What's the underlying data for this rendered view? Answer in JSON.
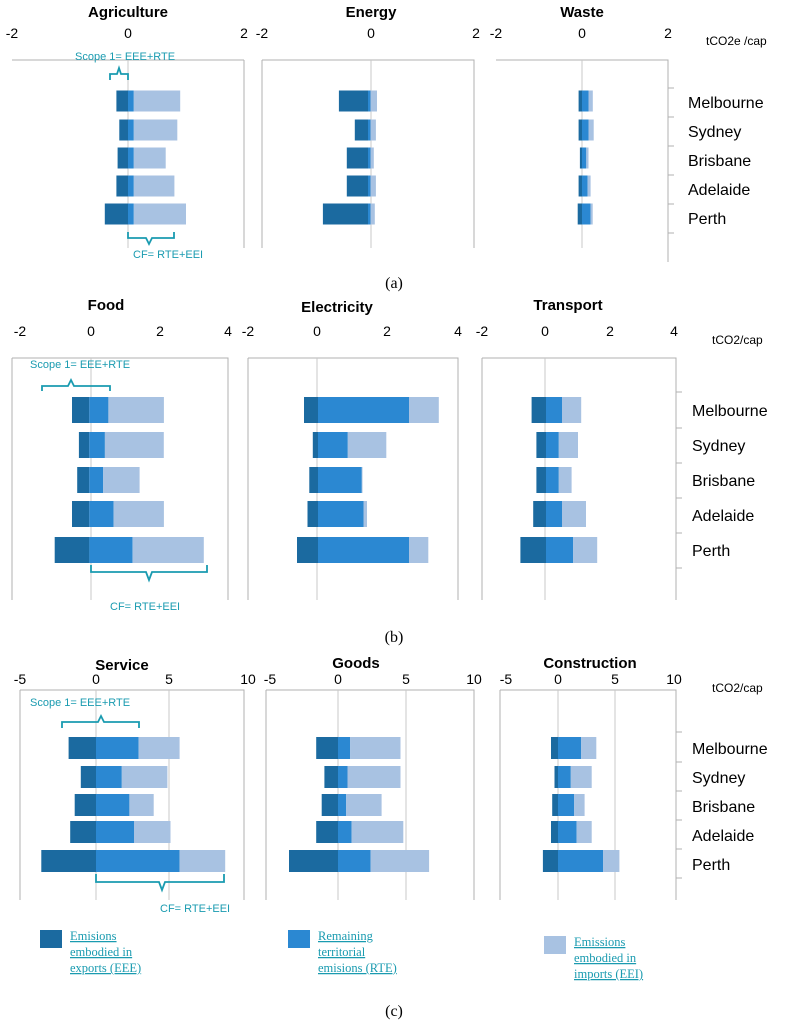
{
  "colors": {
    "eee": "#1b6aa0",
    "rte": "#2b88d2",
    "eei": "#a8c2e2",
    "annotation": "#1a9bb0"
  },
  "cities": [
    "Melbourne",
    "Sydney",
    "Brisbane",
    "Adelaide",
    "Perth"
  ],
  "legend": [
    {
      "key": "eee",
      "line1": "Emisions",
      "line2": "embodied in",
      "line3": "exports (EEE)"
    },
    {
      "key": "rte",
      "line1": "Remaining",
      "line2": "territorial",
      "line3": "emisions (RTE)"
    },
    {
      "key": "eei",
      "line1": "Emissions",
      "line2": "embodied in",
      "line3": "imports (EEI)"
    }
  ],
  "chart_data": [
    {
      "label": "(a)",
      "unit": "tCO2e /cap",
      "ticks": [
        "-2",
        "0",
        "2"
      ],
      "scope_label": "Scope 1= EEE+RTE",
      "cf_label": "CF= RTE+EEI",
      "panels": [
        {
          "title": "Agriculture",
          "type": "bar",
          "xlim": [
            -2,
            2
          ],
          "series": [
            {
              "name": "EEE",
              "values": [
                -0.2,
                -0.15,
                -0.18,
                -0.2,
                -0.4
              ]
            },
            {
              "name": "RTE",
              "values": [
                0.1,
                0.1,
                0.1,
                0.1,
                0.1
              ]
            },
            {
              "name": "EEI",
              "values": [
                0.8,
                0.75,
                0.55,
                0.7,
                0.9
              ]
            }
          ]
        },
        {
          "title": "Energy",
          "type": "bar",
          "xlim": [
            -2,
            2
          ],
          "series": [
            {
              "name": "EEE",
              "values": [
                -0.55,
                -0.25,
                -0.4,
                -0.4,
                -0.85
              ]
            },
            {
              "name": "RTE",
              "values": [
                0.05,
                0.05,
                0.05,
                0.05,
                0.05
              ]
            },
            {
              "name": "EEI",
              "values": [
                0.12,
                0.1,
                0.06,
                0.1,
                0.08
              ]
            }
          ]
        },
        {
          "title": "Waste",
          "type": "bar",
          "xlim": [
            -2,
            2
          ],
          "series": [
            {
              "name": "EEE",
              "values": [
                -0.08,
                -0.08,
                -0.05,
                -0.08,
                -0.1
              ]
            },
            {
              "name": "RTE",
              "values": [
                0.15,
                0.15,
                0.1,
                0.13,
                0.2
              ]
            },
            {
              "name": "EEI",
              "values": [
                0.1,
                0.12,
                0.05,
                0.07,
                0.05
              ]
            }
          ]
        }
      ]
    },
    {
      "label": "(b)",
      "unit": "tCO2/cap",
      "ticks": [
        "-2",
        "0",
        "2",
        "4"
      ],
      "scope_label": "Scope 1= EEE+RTE",
      "cf_label": "CF= RTE+EEI",
      "panels": [
        {
          "title": "Food",
          "type": "bar",
          "xlim": [
            -2,
            4
          ],
          "series": [
            {
              "name": "EEE",
              "values": [
                -0.5,
                -0.3,
                -0.35,
                -0.5,
                -1.0
              ]
            },
            {
              "name": "RTE",
              "values": [
                0.55,
                0.45,
                0.4,
                0.7,
                1.25
              ]
            },
            {
              "name": "EEI",
              "values": [
                1.6,
                1.7,
                1.05,
                1.45,
                2.05
              ]
            }
          ]
        },
        {
          "title": "Electricity",
          "type": "bar",
          "xlim": [
            -2,
            4
          ],
          "series": [
            {
              "name": "EEE",
              "values": [
                -0.4,
                -0.15,
                -0.25,
                -0.3,
                -0.6
              ]
            },
            {
              "name": "RTE",
              "values": [
                2.6,
                0.85,
                1.25,
                1.3,
                2.6
              ]
            },
            {
              "name": "EEI",
              "values": [
                0.85,
                1.1,
                0.02,
                0.1,
                0.55
              ]
            }
          ]
        },
        {
          "title": "Transport",
          "type": "bar",
          "xlim": [
            -2,
            4
          ],
          "series": [
            {
              "name": "EEE",
              "values": [
                -0.45,
                -0.3,
                -0.3,
                -0.4,
                -0.8
              ]
            },
            {
              "name": "RTE",
              "values": [
                0.5,
                0.4,
                0.4,
                0.5,
                0.85
              ]
            },
            {
              "name": "EEI",
              "values": [
                0.6,
                0.6,
                0.4,
                0.75,
                0.75
              ]
            }
          ]
        }
      ]
    },
    {
      "label": "(c)",
      "unit": "tCO2/cap",
      "ticks": [
        "-5",
        "0",
        "5",
        "10"
      ],
      "scope_label": "Scope 1= EEE+RTE",
      "cf_label": "CF= RTE+EEI",
      "panels": [
        {
          "title": "Service",
          "type": "bar",
          "xlim": [
            -5,
            10
          ],
          "series": [
            {
              "name": "EEE",
              "values": [
                -1.8,
                -1.0,
                -1.4,
                -1.7,
                -3.6
              ]
            },
            {
              "name": "RTE",
              "values": [
                2.8,
                1.7,
                2.2,
                2.5,
                5.5
              ]
            },
            {
              "name": "EEI",
              "values": [
                2.7,
                3.0,
                1.6,
                2.4,
                3.0
              ]
            }
          ]
        },
        {
          "title": "Goods",
          "type": "bar",
          "xlim": [
            -5,
            10
          ],
          "series": [
            {
              "name": "EEE",
              "values": [
                -1.6,
                -1.0,
                -1.2,
                -1.6,
                -3.6
              ]
            },
            {
              "name": "RTE",
              "values": [
                0.9,
                0.7,
                0.6,
                1.0,
                2.4
              ]
            },
            {
              "name": "EEI",
              "values": [
                3.7,
                3.9,
                2.6,
                3.8,
                4.3
              ]
            }
          ]
        },
        {
          "title": "Construction",
          "type": "bar",
          "xlim": [
            -5,
            10
          ],
          "series": [
            {
              "name": "EEE",
              "values": [
                -0.6,
                -0.3,
                -0.5,
                -0.6,
                -1.3
              ]
            },
            {
              "name": "RTE",
              "values": [
                2.0,
                1.1,
                1.4,
                1.6,
                3.9
              ]
            },
            {
              "name": "EEI",
              "values": [
                1.3,
                1.8,
                0.9,
                1.3,
                1.4
              ]
            }
          ]
        }
      ]
    }
  ]
}
